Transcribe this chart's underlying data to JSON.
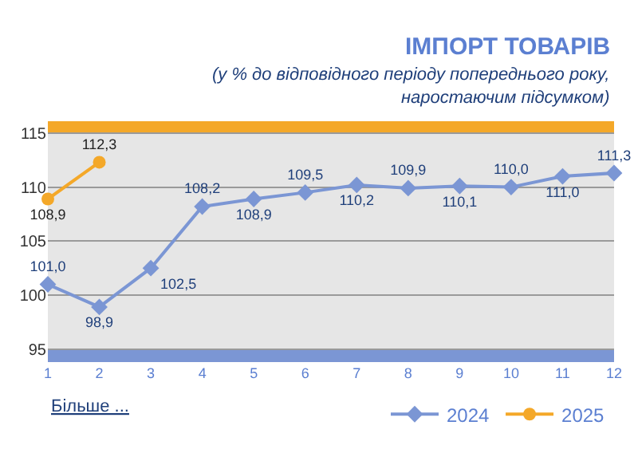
{
  "chart_data": {
    "type": "line",
    "title": "ІМПОРТ ТОВАРІВ",
    "subtitle": "(у % до відповідного періоду попереднього року, наростаючим підсумком)",
    "x": [
      1,
      2,
      3,
      4,
      5,
      6,
      7,
      8,
      9,
      10,
      11,
      12
    ],
    "series": [
      {
        "name": "2024",
        "color": "#7b96d4",
        "marker": "diamond",
        "values": [
          101.0,
          98.9,
          102.5,
          108.2,
          108.9,
          109.5,
          110.2,
          109.9,
          110.1,
          110.0,
          111.0,
          111.3
        ],
        "value_labels": [
          "101,0",
          "98,9",
          "102,5",
          "108,2",
          "108,9",
          "109,5",
          "110,2",
          "109,9",
          "110,1",
          "110,0",
          "111,0",
          "111,3"
        ]
      },
      {
        "name": "2025",
        "color": "#f4a829",
        "marker": "circle",
        "values": [
          108.9,
          112.3,
          null,
          null,
          null,
          null,
          null,
          null,
          null,
          null,
          null,
          null
        ],
        "value_labels": [
          "108,9",
          "112,3",
          null,
          null,
          null,
          null,
          null,
          null,
          null,
          null,
          null,
          null
        ]
      }
    ],
    "xlim": [
      1,
      12
    ],
    "xticks": [
      1,
      2,
      3,
      4,
      5,
      6,
      7,
      8,
      9,
      10,
      11,
      12
    ],
    "ylim": [
      93.8,
      116.1
    ],
    "yticks": [
      95,
      100,
      105,
      110,
      115
    ],
    "bands": [
      {
        "axis": "y",
        "from": 115,
        "to": 116.1,
        "color": "#f4a829"
      },
      {
        "axis": "y",
        "from": 93.8,
        "to": 95,
        "color": "#7b96d4"
      }
    ],
    "grid": "y",
    "legend": "bottom right",
    "line_style": "solid",
    "annotations": [
      "Більше ..."
    ]
  }
}
